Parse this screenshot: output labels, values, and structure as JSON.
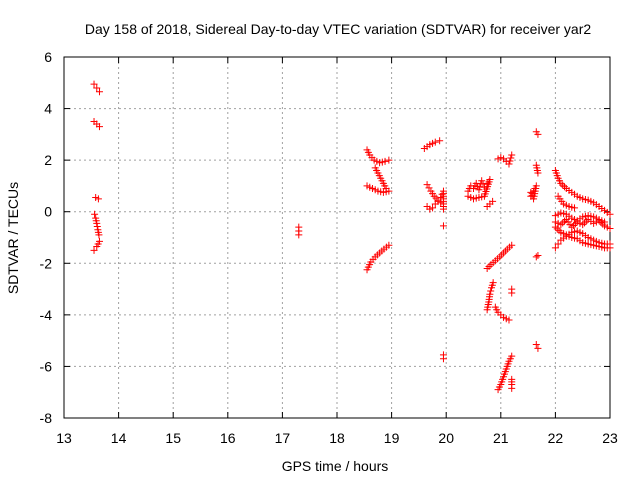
{
  "chart_data": {
    "type": "scatter",
    "title": "Day 158 of 2018, Sidereal Day-to-day VTEC variation (SDTVAR) for receiver yar2",
    "xlabel": "GPS time / hours",
    "ylabel": "SDTVAR / TECUs",
    "xlim": [
      13,
      23
    ],
    "ylim": [
      -8,
      6
    ],
    "xticks": [
      "13",
      "14",
      "15",
      "16",
      "17",
      "18",
      "19",
      "20",
      "21",
      "22",
      "23"
    ],
    "yticks": [
      "-8",
      "-6",
      "-4",
      "-2",
      "0",
      "2",
      "4",
      "6"
    ],
    "grid": true,
    "marker": "+",
    "color": "#ff0000",
    "series": [
      {
        "name": "SDTVAR",
        "segments": [
          [
            [
              13.55,
              4.95
            ],
            [
              13.6,
              4.8
            ],
            [
              13.65,
              4.65
            ]
          ],
          [
            [
              13.55,
              3.5
            ],
            [
              13.6,
              3.4
            ],
            [
              13.65,
              3.3
            ]
          ],
          [
            [
              13.58,
              0.55
            ],
            [
              13.63,
              0.5
            ]
          ],
          [
            [
              13.56,
              -0.1
            ],
            [
              13.58,
              -0.25
            ],
            [
              13.6,
              -0.45
            ],
            [
              13.62,
              -0.7
            ],
            [
              13.64,
              -0.9
            ]
          ],
          [
            [
              13.55,
              -1.5
            ],
            [
              13.6,
              -1.35
            ],
            [
              13.65,
              -1.15
            ]
          ],
          [
            [
              17.3,
              -0.6
            ],
            [
              17.3,
              -0.75
            ],
            [
              17.3,
              -0.9
            ]
          ],
          [
            [
              18.55,
              2.4
            ],
            [
              18.6,
              2.2
            ],
            [
              18.68,
              2.0
            ],
            [
              18.78,
              1.9
            ],
            [
              18.88,
              1.95
            ],
            [
              18.95,
              2.0
            ]
          ],
          [
            [
              18.55,
              1.0
            ],
            [
              18.65,
              0.9
            ],
            [
              18.75,
              0.8
            ],
            [
              18.85,
              0.75
            ],
            [
              18.95,
              0.8
            ]
          ],
          [
            [
              18.7,
              1.7
            ],
            [
              18.75,
              1.5
            ],
            [
              18.8,
              1.3
            ],
            [
              18.85,
              1.1
            ],
            [
              18.9,
              0.9
            ]
          ],
          [
            [
              18.55,
              -2.25
            ],
            [
              18.62,
              -1.95
            ],
            [
              18.7,
              -1.75
            ],
            [
              18.78,
              -1.6
            ],
            [
              18.86,
              -1.45
            ],
            [
              18.95,
              -1.3
            ]
          ],
          [
            [
              19.6,
              2.45
            ],
            [
              19.7,
              2.6
            ],
            [
              19.8,
              2.7
            ],
            [
              19.88,
              2.75
            ]
          ],
          [
            [
              19.65,
              1.05
            ],
            [
              19.72,
              0.8
            ],
            [
              19.78,
              0.6
            ],
            [
              19.85,
              0.45
            ],
            [
              19.9,
              0.35
            ]
          ],
          [
            [
              19.65,
              0.2
            ],
            [
              19.7,
              0.1
            ],
            [
              19.75,
              0.15
            ],
            [
              19.8,
              0.3
            ],
            [
              19.85,
              0.4
            ],
            [
              19.9,
              0.55
            ],
            [
              19.95,
              0.8
            ],
            [
              19.95,
              0.1
            ]
          ],
          [
            [
              19.95,
              -0.55
            ]
          ],
          [
            [
              19.95,
              -5.55
            ],
            [
              19.95,
              -5.7
            ]
          ],
          [
            [
              20.4,
              0.8
            ],
            [
              20.45,
              1.0
            ],
            [
              20.5,
              0.9
            ],
            [
              20.55,
              1.1
            ],
            [
              20.6,
              0.85
            ],
            [
              20.65,
              1.2
            ],
            [
              20.7,
              0.95
            ],
            [
              20.75,
              1.1
            ],
            [
              20.8,
              1.25
            ],
            [
              20.7,
              0.6
            ],
            [
              20.6,
              0.55
            ],
            [
              20.5,
              0.5
            ],
            [
              20.4,
              0.6
            ]
          ],
          [
            [
              20.75,
              0.2
            ],
            [
              20.8,
              0.3
            ],
            [
              20.85,
              0.4
            ]
          ],
          [
            [
              20.95,
              2.05
            ],
            [
              21.0,
              2.1
            ],
            [
              21.05,
              2.05
            ],
            [
              21.1,
              1.95
            ],
            [
              21.15,
              1.85
            ],
            [
              21.2,
              2.2
            ]
          ],
          [
            [
              20.75,
              -2.2
            ],
            [
              20.82,
              -2.05
            ],
            [
              20.9,
              -1.9
            ],
            [
              20.98,
              -1.75
            ],
            [
              21.05,
              -1.6
            ],
            [
              21.12,
              -1.45
            ],
            [
              21.2,
              -1.3
            ]
          ],
          [
            [
              20.75,
              -3.8
            ],
            [
              20.78,
              -3.5
            ],
            [
              20.8,
              -3.2
            ],
            [
              20.83,
              -2.95
            ],
            [
              20.86,
              -2.75
            ]
          ],
          [
            [
              20.9,
              -3.7
            ],
            [
              20.95,
              -3.9
            ],
            [
              21.0,
              -4.0
            ],
            [
              21.05,
              -4.1
            ],
            [
              21.1,
              -4.15
            ],
            [
              21.15,
              -4.2
            ]
          ],
          [
            [
              21.2,
              -3.0
            ],
            [
              21.2,
              -3.15
            ]
          ],
          [
            [
              20.95,
              -6.9
            ],
            [
              21.0,
              -6.7
            ],
            [
              21.05,
              -6.4
            ],
            [
              21.1,
              -6.1
            ],
            [
              21.15,
              -5.8
            ],
            [
              21.2,
              -5.6
            ]
          ],
          [
            [
              21.2,
              -6.5
            ],
            [
              21.2,
              -6.7
            ],
            [
              21.2,
              -6.85
            ]
          ],
          [
            [
              21.55,
              0.6
            ],
            [
              21.6,
              0.8
            ],
            [
              21.65,
              1.0
            ],
            [
              21.6,
              0.5
            ],
            [
              21.55,
              0.75
            ]
          ],
          [
            [
              21.65,
              3.1
            ],
            [
              21.68,
              3.0
            ]
          ],
          [
            [
              21.65,
              1.8
            ],
            [
              21.68,
              1.5
            ]
          ],
          [
            [
              21.65,
              -1.75
            ],
            [
              21.68,
              -1.7
            ]
          ],
          [
            [
              21.65,
              -5.15
            ],
            [
              21.68,
              -5.3
            ]
          ],
          [
            [
              22.0,
              1.6
            ],
            [
              22.05,
              1.3
            ],
            [
              22.1,
              1.1
            ],
            [
              22.2,
              0.9
            ],
            [
              22.3,
              0.75
            ],
            [
              22.4,
              0.6
            ],
            [
              22.5,
              0.5
            ],
            [
              22.6,
              0.45
            ],
            [
              22.7,
              0.35
            ],
            [
              22.8,
              0.2
            ],
            [
              22.9,
              0.05
            ],
            [
              23.0,
              -0.1
            ]
          ],
          [
            [
              22.05,
              0.6
            ],
            [
              22.15,
              0.3
            ],
            [
              22.25,
              0.2
            ],
            [
              22.35,
              0.15
            ]
          ],
          [
            [
              22.0,
              -0.4
            ],
            [
              22.1,
              -0.5
            ],
            [
              22.2,
              -0.3
            ],
            [
              22.3,
              -0.6
            ],
            [
              22.4,
              -0.4
            ],
            [
              22.5,
              -0.5
            ],
            [
              22.6,
              -0.3
            ],
            [
              22.7,
              -0.45
            ],
            [
              22.8,
              -0.35
            ],
            [
              22.9,
              -0.55
            ],
            [
              23.0,
              -0.65
            ]
          ],
          [
            [
              22.0,
              -0.6
            ],
            [
              22.1,
              -0.8
            ],
            [
              22.2,
              -0.9
            ],
            [
              22.3,
              -1.0
            ],
            [
              22.4,
              -1.05
            ],
            [
              22.5,
              -1.2
            ],
            [
              22.6,
              -1.25
            ],
            [
              22.7,
              -1.3
            ],
            [
              22.8,
              -1.35
            ],
            [
              22.9,
              -1.4
            ],
            [
              23.0,
              -1.4
            ]
          ],
          [
            [
              22.0,
              -1.4
            ],
            [
              22.05,
              -1.25
            ],
            [
              22.1,
              -1.1
            ],
            [
              22.2,
              -0.95
            ],
            [
              22.3,
              -0.8
            ],
            [
              22.4,
              -0.75
            ],
            [
              22.5,
              -0.85
            ],
            [
              22.6,
              -1.0
            ],
            [
              22.7,
              -1.1
            ],
            [
              22.8,
              -1.2
            ],
            [
              22.9,
              -1.25
            ],
            [
              23.0,
              -1.25
            ]
          ],
          [
            [
              22.0,
              -0.15
            ],
            [
              22.1,
              -0.05
            ],
            [
              22.2,
              -0.1
            ],
            [
              22.3,
              -0.25
            ],
            [
              22.4,
              -0.35
            ],
            [
              22.5,
              -0.2
            ],
            [
              22.6,
              -0.15
            ],
            [
              22.7,
              -0.2
            ],
            [
              22.8,
              -0.3
            ],
            [
              22.9,
              -0.4
            ]
          ]
        ]
      }
    ]
  }
}
